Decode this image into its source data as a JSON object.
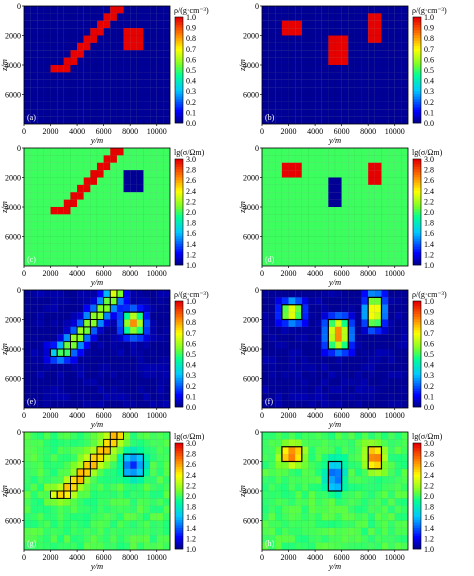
{
  "figure": {
    "x_axis_label": "y/m",
    "y_axis_label": "z/m",
    "x_ticks": [
      0,
      2000,
      4000,
      6000,
      8000,
      10000
    ],
    "y_ticks": [
      0,
      2000,
      4000,
      6000
    ],
    "x_range": [
      0,
      11000
    ],
    "y_range": [
      0,
      8000
    ],
    "cell_size_m": 500,
    "grid": true
  },
  "chart_data": [
    {
      "panel": "(a)",
      "type": "heatmap",
      "quantity": "density",
      "model": "true",
      "background": 0.0,
      "colorbar": {
        "label": "ρ/(g·cm⁻³)",
        "ticks": [
          "1.0",
          "0.9",
          "0.8",
          "0.7",
          "0.6",
          "0.5",
          "0.4",
          "0.3",
          "0.2",
          "0.1",
          "0.0"
        ],
        "range": [
          0.0,
          1.0
        ]
      },
      "anomalies": [
        {
          "shape": "arc",
          "value": 1.0
        },
        {
          "shape": "block",
          "y_range": [
            7500,
            9000
          ],
          "z_range": [
            1500,
            3000
          ],
          "value": 1.0
        }
      ]
    },
    {
      "panel": "(b)",
      "type": "heatmap",
      "quantity": "density",
      "model": "true",
      "background": 0.0,
      "colorbar": {
        "label": "ρ/(g·cm⁻³)",
        "ticks": [
          "1.0",
          "0.9",
          "0.8",
          "0.7",
          "0.6",
          "0.5",
          "0.4",
          "0.3",
          "0.2",
          "0.1",
          "0.0"
        ],
        "range": [
          0.0,
          1.0
        ]
      },
      "anomalies": [
        {
          "shape": "block",
          "y_range": [
            1500,
            3000
          ],
          "z_range": [
            1000,
            2000
          ],
          "value": 1.0
        },
        {
          "shape": "block",
          "y_range": [
            5000,
            6500
          ],
          "z_range": [
            2000,
            4000
          ],
          "value": 1.0
        },
        {
          "shape": "block",
          "y_range": [
            8000,
            9000
          ],
          "z_range": [
            500,
            2500
          ],
          "value": 1.0
        }
      ]
    },
    {
      "panel": "(c)",
      "type": "heatmap",
      "quantity": "resistivity",
      "model": "true",
      "background": 2.0,
      "colorbar": {
        "label": "lg(σ/Ωm)",
        "ticks": [
          "3.0",
          "2.8",
          "2.6",
          "2.4",
          "2.2",
          "2.0",
          "1.8",
          "1.6",
          "1.4",
          "1.2",
          "1.0"
        ],
        "range": [
          1.0,
          3.0
        ]
      },
      "anomalies": [
        {
          "shape": "arc",
          "value": 3.0
        },
        {
          "shape": "block",
          "y_range": [
            7500,
            9000
          ],
          "z_range": [
            1500,
            3000
          ],
          "value": 1.0
        }
      ]
    },
    {
      "panel": "(d)",
      "type": "heatmap",
      "quantity": "resistivity",
      "model": "true",
      "background": 2.0,
      "colorbar": {
        "label": "lg(σ/Ωm)",
        "ticks": [
          "3.0",
          "2.8",
          "2.6",
          "2.4",
          "2.2",
          "2.0",
          "1.8",
          "1.6",
          "1.4",
          "1.2",
          "1.0"
        ],
        "range": [
          1.0,
          3.0
        ]
      },
      "anomalies": [
        {
          "shape": "block",
          "y_range": [
            1500,
            3000
          ],
          "z_range": [
            1000,
            2000
          ],
          "value": 3.0
        },
        {
          "shape": "block",
          "y_range": [
            5000,
            6000
          ],
          "z_range": [
            2000,
            4000
          ],
          "value": 1.0
        },
        {
          "shape": "block",
          "y_range": [
            8000,
            9000
          ],
          "z_range": [
            1000,
            2500
          ],
          "value": 3.0
        }
      ]
    },
    {
      "panel": "(e)",
      "type": "heatmap",
      "quantity": "density",
      "model": "inversion",
      "background": 0.0,
      "colorbar": {
        "label": "ρ/(g·cm⁻³)",
        "ticks": [
          "1.0",
          "0.9",
          "0.8",
          "0.7",
          "0.6",
          "0.5",
          "0.4",
          "0.3",
          "0.2",
          "0.1",
          "0.0"
        ],
        "range": [
          0.0,
          1.0
        ]
      },
      "anomalies": [
        {
          "shape": "arc",
          "value": 0.85,
          "outlined": true
        },
        {
          "shape": "block",
          "y_range": [
            7500,
            9000
          ],
          "z_range": [
            1500,
            3000
          ],
          "value": 0.8,
          "outlined": true
        }
      ]
    },
    {
      "panel": "(f)",
      "type": "heatmap",
      "quantity": "density",
      "model": "inversion",
      "background": 0.0,
      "colorbar": {
        "label": "ρ/(g·cm⁻³)",
        "ticks": [
          "1.0",
          "0.9",
          "0.8",
          "0.7",
          "0.6",
          "0.5",
          "0.4",
          "0.3",
          "0.2",
          "0.1",
          "0.0"
        ],
        "range": [
          0.0,
          1.0
        ]
      },
      "anomalies": [
        {
          "shape": "block",
          "y_range": [
            1500,
            3000
          ],
          "z_range": [
            1000,
            2000
          ],
          "value": 0.9,
          "outlined": true
        },
        {
          "shape": "block",
          "y_range": [
            5000,
            6500
          ],
          "z_range": [
            2000,
            4000
          ],
          "value": 0.85,
          "outlined": true
        },
        {
          "shape": "block",
          "y_range": [
            8000,
            9000
          ],
          "z_range": [
            500,
            2500
          ],
          "value": 0.9,
          "outlined": true
        }
      ]
    },
    {
      "panel": "(g)",
      "type": "heatmap",
      "quantity": "resistivity",
      "model": "inversion",
      "background": 2.0,
      "colorbar": {
        "label": "lg(σ/Ωm)",
        "ticks": [
          "3.0",
          "2.8",
          "2.6",
          "2.4",
          "2.2",
          "2.0",
          "1.8",
          "1.6",
          "1.4",
          "1.2",
          "1.0"
        ],
        "range": [
          1.0,
          3.0
        ]
      },
      "anomalies": [
        {
          "shape": "arc",
          "value": 2.8,
          "outlined": true
        },
        {
          "shape": "block",
          "y_range": [
            7500,
            9000
          ],
          "z_range": [
            1500,
            3000
          ],
          "value": 1.3,
          "outlined": true
        }
      ]
    },
    {
      "panel": "(h)",
      "type": "heatmap",
      "quantity": "resistivity",
      "model": "inversion",
      "background": 2.0,
      "colorbar": {
        "label": "lg(σ/Ωm)",
        "ticks": [
          "3.0",
          "2.8",
          "2.6",
          "2.4",
          "2.2",
          "2.0",
          "1.8",
          "1.6",
          "1.4",
          "1.2",
          "1.0"
        ],
        "range": [
          1.0,
          3.0
        ]
      },
      "anomalies": [
        {
          "shape": "block",
          "y_range": [
            1500,
            3000
          ],
          "z_range": [
            1000,
            2000
          ],
          "value": 2.85,
          "outlined": true
        },
        {
          "shape": "block",
          "y_range": [
            5000,
            6000
          ],
          "z_range": [
            2000,
            4000
          ],
          "value": 1.3,
          "outlined": true
        },
        {
          "shape": "block",
          "y_range": [
            8000,
            9000
          ],
          "z_range": [
            1000,
            2500
          ],
          "value": 2.85,
          "outlined": true
        }
      ]
    }
  ]
}
